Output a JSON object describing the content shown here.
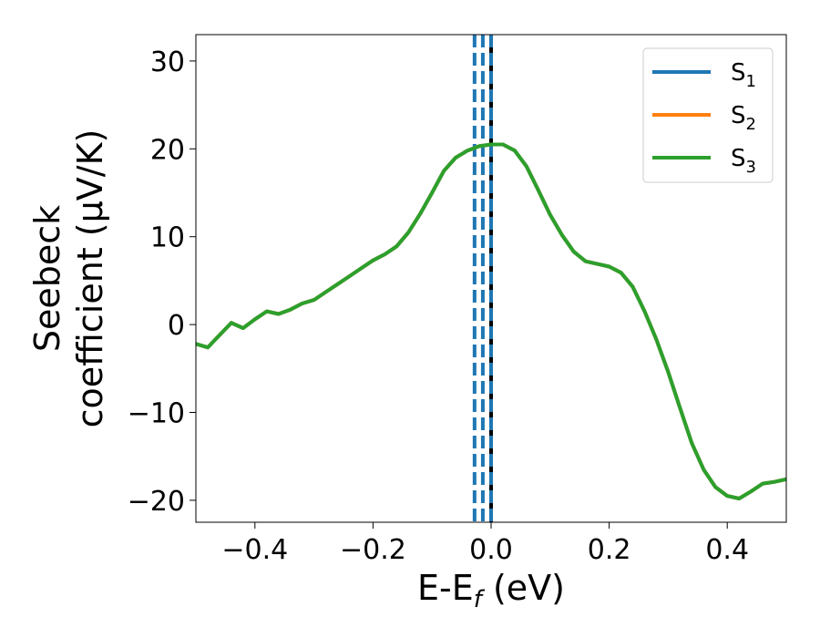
{
  "chart_data": {
    "type": "line",
    "title": "",
    "xlabel": "E-E",
    "xlabel_subscript": "f",
    "xlabel_unit": " (eV)",
    "ylabel_line1": "Seebeck",
    "ylabel_line2": "coefficient  (μV/K)",
    "xlim": [
      -0.5,
      0.5
    ],
    "ylim": [
      -22.5,
      33
    ],
    "xticks": [
      -0.4,
      -0.2,
      0.0,
      0.2,
      0.4
    ],
    "xtick_labels": [
      "−0.4",
      "−0.2",
      "0.0",
      "0.2",
      "0.4"
    ],
    "yticks": [
      -20,
      -10,
      0,
      10,
      20,
      30
    ],
    "ytick_labels": [
      "−20",
      "−10",
      "0",
      "10",
      "20",
      "30"
    ],
    "grid": false,
    "legend_position": "top-right",
    "series": [
      {
        "name": "S",
        "subscript": "1",
        "color": "#1f77b4",
        "x": [
          -0.5,
          -0.48,
          -0.46,
          -0.44,
          -0.42,
          -0.4,
          -0.38,
          -0.36,
          -0.34,
          -0.32,
          -0.3,
          -0.28,
          -0.26,
          -0.24,
          -0.22,
          -0.2,
          -0.18,
          -0.16,
          -0.14,
          -0.12,
          -0.1,
          -0.08,
          -0.06,
          -0.04,
          -0.02,
          0.0,
          0.02,
          0.04,
          0.06,
          0.08,
          0.1,
          0.12,
          0.14,
          0.16,
          0.18,
          0.2,
          0.22,
          0.24,
          0.26,
          0.28,
          0.3,
          0.32,
          0.34,
          0.36,
          0.38,
          0.4,
          0.42,
          0.44,
          0.46,
          0.48,
          0.5
        ],
        "y": [
          -2.2,
          -2.6,
          -1.2,
          0.2,
          -0.4,
          0.6,
          1.5,
          1.2,
          1.7,
          2.4,
          2.8,
          3.7,
          4.6,
          5.5,
          6.4,
          7.3,
          8.0,
          8.9,
          10.5,
          12.6,
          15.0,
          17.5,
          19.0,
          19.8,
          20.3,
          20.5,
          20.5,
          19.8,
          18.0,
          15.3,
          12.5,
          10.2,
          8.3,
          7.2,
          6.9,
          6.6,
          5.9,
          4.3,
          1.5,
          -1.7,
          -5.4,
          -9.5,
          -13.5,
          -16.5,
          -18.5,
          -19.5,
          -19.8,
          -19.0,
          -18.1,
          -17.9,
          -17.6
        ]
      },
      {
        "name": "S",
        "subscript": "2",
        "color": "#ff7f0e",
        "x": [
          -0.5,
          -0.48,
          -0.46,
          -0.44,
          -0.42,
          -0.4,
          -0.38,
          -0.36,
          -0.34,
          -0.32,
          -0.3,
          -0.28,
          -0.26,
          -0.24,
          -0.22,
          -0.2,
          -0.18,
          -0.16,
          -0.14,
          -0.12,
          -0.1,
          -0.08,
          -0.06,
          -0.04,
          -0.02,
          0.0,
          0.02,
          0.04,
          0.06,
          0.08,
          0.1,
          0.12,
          0.14,
          0.16,
          0.18,
          0.2,
          0.22,
          0.24,
          0.26,
          0.28,
          0.3,
          0.32,
          0.34,
          0.36,
          0.38,
          0.4,
          0.42,
          0.44,
          0.46,
          0.48,
          0.5
        ],
        "y": [
          -2.2,
          -2.6,
          -1.2,
          0.2,
          -0.4,
          0.6,
          1.5,
          1.2,
          1.7,
          2.4,
          2.8,
          3.7,
          4.6,
          5.5,
          6.4,
          7.3,
          8.0,
          8.9,
          10.5,
          12.6,
          15.0,
          17.5,
          19.0,
          19.8,
          20.3,
          20.5,
          20.5,
          19.8,
          18.0,
          15.3,
          12.5,
          10.2,
          8.3,
          7.2,
          6.9,
          6.6,
          5.9,
          4.3,
          1.5,
          -1.7,
          -5.4,
          -9.5,
          -13.5,
          -16.5,
          -18.5,
          -19.5,
          -19.8,
          -19.0,
          -18.1,
          -17.9,
          -17.6
        ]
      },
      {
        "name": "S",
        "subscript": "3",
        "color": "#2ca02c",
        "x": [
          -0.5,
          -0.48,
          -0.46,
          -0.44,
          -0.42,
          -0.4,
          -0.38,
          -0.36,
          -0.34,
          -0.32,
          -0.3,
          -0.28,
          -0.26,
          -0.24,
          -0.22,
          -0.2,
          -0.18,
          -0.16,
          -0.14,
          -0.12,
          -0.1,
          -0.08,
          -0.06,
          -0.04,
          -0.02,
          0.0,
          0.02,
          0.04,
          0.06,
          0.08,
          0.1,
          0.12,
          0.14,
          0.16,
          0.18,
          0.2,
          0.22,
          0.24,
          0.26,
          0.28,
          0.3,
          0.32,
          0.34,
          0.36,
          0.38,
          0.4,
          0.42,
          0.44,
          0.46,
          0.48,
          0.5
        ],
        "y": [
          -2.2,
          -2.6,
          -1.2,
          0.2,
          -0.4,
          0.6,
          1.5,
          1.2,
          1.7,
          2.4,
          2.8,
          3.7,
          4.6,
          5.5,
          6.4,
          7.3,
          8.0,
          8.9,
          10.5,
          12.6,
          15.0,
          17.5,
          19.0,
          19.8,
          20.3,
          20.5,
          20.5,
          19.8,
          18.0,
          15.3,
          12.5,
          10.2,
          8.3,
          7.2,
          6.9,
          6.6,
          5.9,
          4.3,
          1.5,
          -1.7,
          -5.4,
          -9.5,
          -13.5,
          -16.5,
          -18.5,
          -19.5,
          -19.8,
          -19.0,
          -18.1,
          -17.9,
          -17.6
        ]
      }
    ],
    "vertical_lines": [
      {
        "x": -0.028,
        "color": "#1f77b4",
        "style": "dashed"
      },
      {
        "x": -0.014,
        "color": "#1f77b4",
        "style": "dashed"
      },
      {
        "x": 0.0,
        "color": "#000000",
        "style": "solid"
      },
      {
        "x": 0.0,
        "color": "#1f77b4",
        "style": "dashed"
      }
    ]
  }
}
